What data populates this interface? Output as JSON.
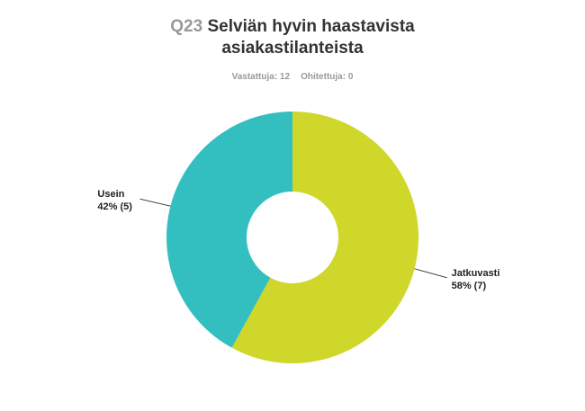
{
  "chart_data": {
    "type": "donut",
    "question": "Q23",
    "title": "Selviän hyvin haastavista asiakastilanteista",
    "answered": "Vastattuja: 12",
    "skipped": "Ohitettuja: 0",
    "categories": [
      "Jatkuvasti",
      "Usein"
    ],
    "values": [
      58,
      42
    ],
    "value_labels": [
      "58% (7)",
      "42% (5)"
    ],
    "colors": [
      "#cfd72b",
      "#33bfc0"
    ]
  }
}
